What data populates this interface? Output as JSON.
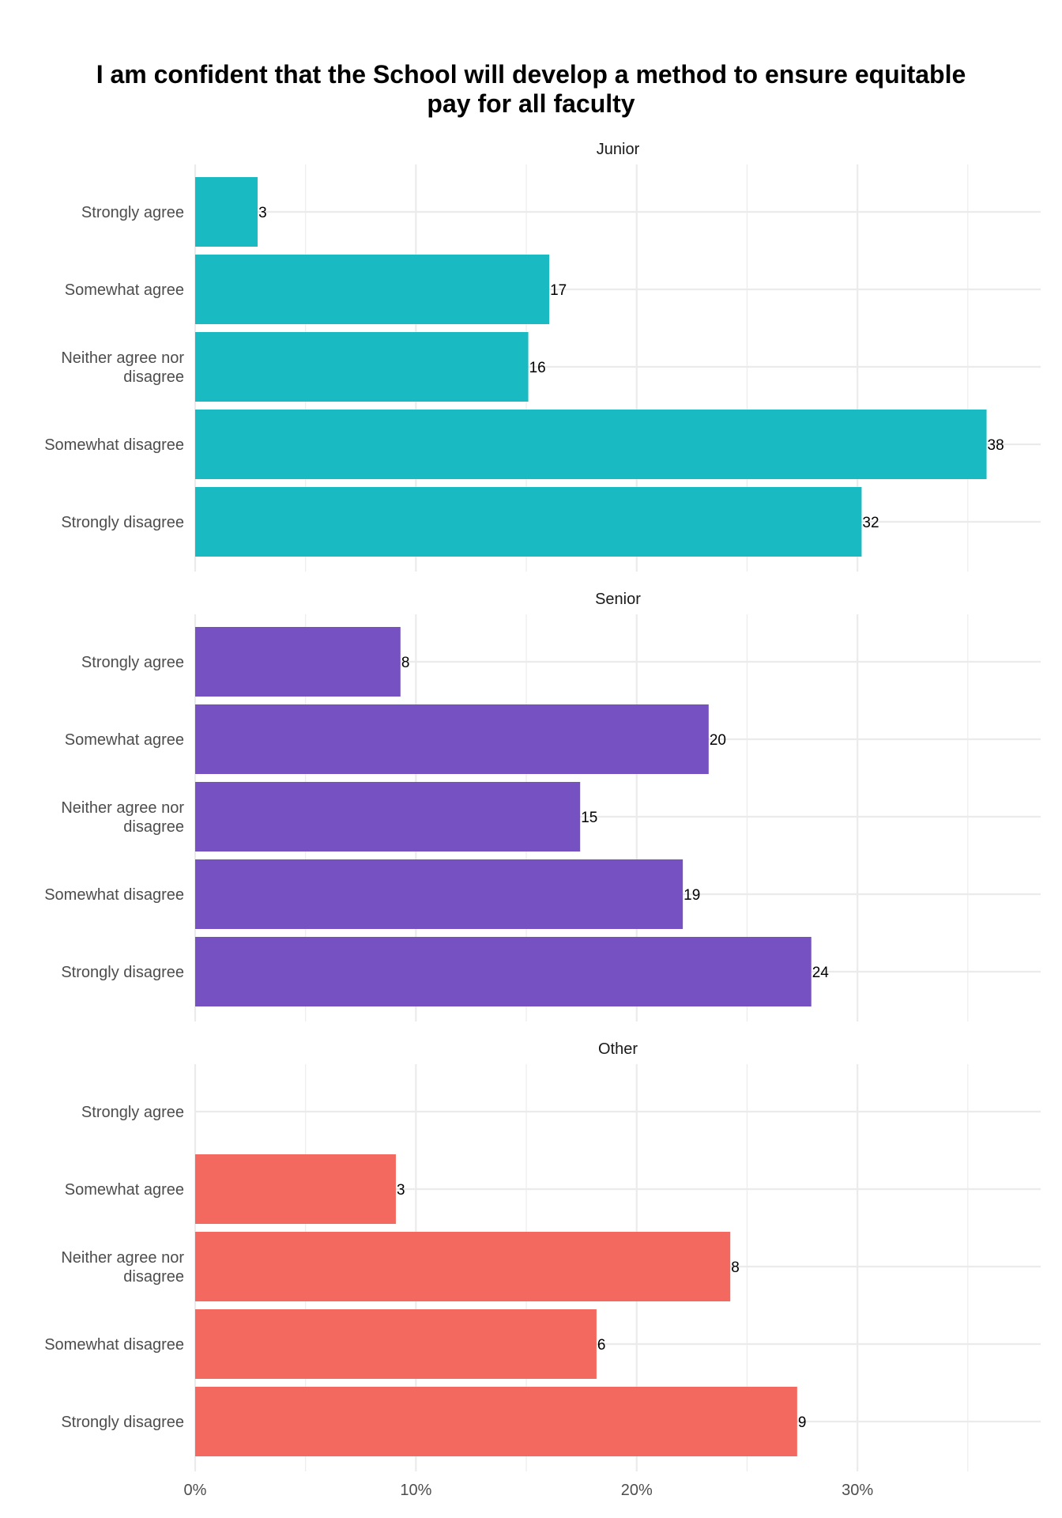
{
  "chart_data": {
    "type": "bar",
    "orientation": "horizontal",
    "title": "I am confident that the School will develop a method to ensure equitable pay for all faculty",
    "title_lines": [
      "I am confident that the School will develop a method to ensure equitable",
      "pay for all faculty"
    ],
    "xlabel": "",
    "ylabel": "",
    "xlim": [
      0,
      0.383
    ],
    "x_ticks": [
      0,
      0.1,
      0.2,
      0.3
    ],
    "x_tick_labels": [
      "0%",
      "10%",
      "20%",
      "30%"
    ],
    "grid": true,
    "legend": "none",
    "categories": [
      "Strongly agree",
      "Somewhat agree",
      "Neither agree nor disagree",
      "Somewhat disagree",
      "Strongly disagree"
    ],
    "category_lines": [
      [
        "Strongly agree"
      ],
      [
        "Somewhat agree"
      ],
      [
        "Neither agree nor",
        "disagree"
      ],
      [
        "Somewhat disagree"
      ],
      [
        "Strongly disagree"
      ]
    ],
    "panels": [
      {
        "name": "Junior",
        "color": "#19BAC1",
        "counts": [
          3,
          17,
          16,
          38,
          32
        ],
        "percent": [
          0.0283,
          0.1604,
          0.1509,
          0.3585,
          0.3019
        ]
      },
      {
        "name": "Senior",
        "color": "#7551C2",
        "counts": [
          8,
          20,
          15,
          19,
          24
        ],
        "percent": [
          0.093,
          0.2326,
          0.1744,
          0.2209,
          0.2791
        ]
      },
      {
        "name": "Other",
        "color": "#F4695F",
        "counts": [
          null,
          3,
          8,
          6,
          9
        ],
        "percent": [
          null,
          0.0909,
          0.2424,
          0.1818,
          0.2727
        ]
      }
    ]
  }
}
